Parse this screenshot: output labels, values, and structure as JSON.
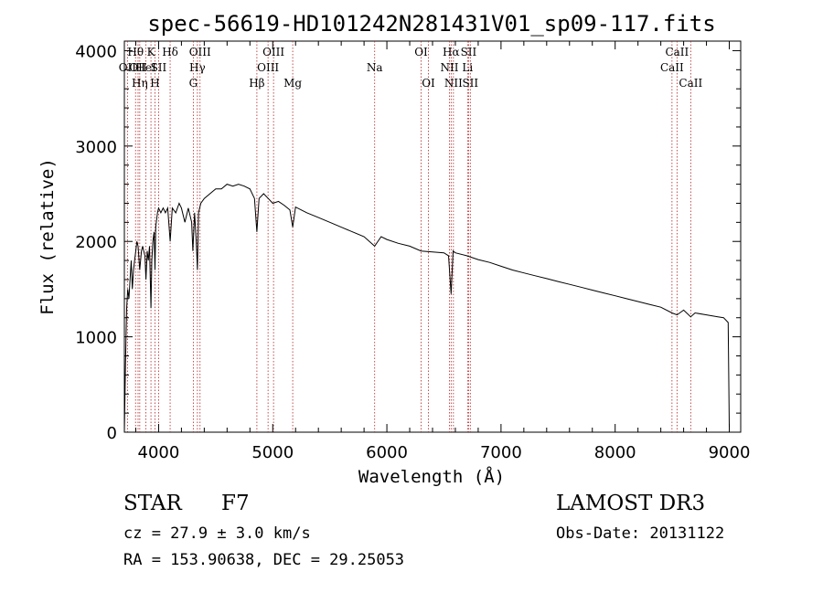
{
  "chart_data": {
    "type": "line",
    "title": "spec-56619-HD101242N281431V01_sp09-117.fits",
    "xlabel": "Wavelength (Å)",
    "ylabel": "Flux (relative)",
    "xlim": [
      3700,
      9100
    ],
    "ylim": [
      0,
      4100
    ],
    "xticks": [
      4000,
      5000,
      6000,
      7000,
      8000,
      9000
    ],
    "yticks": [
      0,
      1000,
      2000,
      3000,
      4000
    ],
    "series": [
      {
        "name": "spectrum",
        "x": [
          3700,
          3710,
          3720,
          3730,
          3740,
          3750,
          3760,
          3770,
          3780,
          3790,
          3800,
          3810,
          3820,
          3835,
          3850,
          3860,
          3870,
          3880,
          3889,
          3900,
          3910,
          3920,
          3933,
          3940,
          3950,
          3960,
          3968,
          3975,
          3990,
          4000,
          4020,
          4040,
          4060,
          4080,
          4101,
          4120,
          4150,
          4180,
          4200,
          4230,
          4260,
          4290,
          4300,
          4315,
          4330,
          4340,
          4350,
          4370,
          4400,
          4450,
          4500,
          4550,
          4600,
          4650,
          4700,
          4750,
          4800,
          4840,
          4861,
          4880,
          4920,
          4960,
          5000,
          5050,
          5100,
          5150,
          5175,
          5200,
          5250,
          5300,
          5400,
          5500,
          5600,
          5700,
          5800,
          5893,
          5950,
          6000,
          6100,
          6200,
          6300,
          6400,
          6500,
          6540,
          6563,
          6580,
          6600,
          6700,
          6800,
          6900,
          7000,
          7100,
          7200,
          7300,
          7400,
          7500,
          7600,
          7700,
          7800,
          7900,
          8000,
          8100,
          8200,
          8300,
          8400,
          8498,
          8542,
          8600,
          8662,
          8700,
          8800,
          8900,
          8950,
          8990,
          9000
        ],
        "y": [
          0,
          700,
          1300,
          1500,
          1400,
          1600,
          1800,
          1500,
          1700,
          1800,
          1900,
          2000,
          1950,
          1700,
          1900,
          1950,
          1900,
          1850,
          1600,
          1900,
          1800,
          1950,
          1300,
          1800,
          2000,
          2100,
          1700,
          2150,
          2300,
          2350,
          2300,
          2350,
          2300,
          2350,
          2000,
          2350,
          2300,
          2400,
          2350,
          2200,
          2350,
          2200,
          1900,
          2300,
          2000,
          1700,
          2300,
          2400,
          2450,
          2500,
          2550,
          2550,
          2600,
          2580,
          2600,
          2580,
          2550,
          2450,
          2100,
          2450,
          2500,
          2450,
          2400,
          2420,
          2380,
          2330,
          2150,
          2360,
          2330,
          2300,
          2250,
          2200,
          2150,
          2100,
          2050,
          1950,
          2050,
          2020,
          1980,
          1950,
          1900,
          1890,
          1880,
          1850,
          1450,
          1900,
          1880,
          1850,
          1810,
          1780,
          1740,
          1700,
          1670,
          1640,
          1610,
          1580,
          1550,
          1520,
          1490,
          1460,
          1430,
          1400,
          1370,
          1340,
          1310,
          1250,
          1230,
          1280,
          1210,
          1250,
          1230,
          1210,
          1200,
          1150,
          50
        ]
      }
    ],
    "lines": [
      {
        "w": 3727,
        "label": "OII",
        "row": 2
      },
      {
        "w": 3798,
        "label": "Hθ",
        "row": 1
      },
      {
        "w": 3820,
        "label": "OII",
        "row": 2
      },
      {
        "w": 3835,
        "label": "Hη",
        "row": 3
      },
      {
        "w": 3889,
        "label": "HeI",
        "row": 2
      },
      {
        "w": 3933,
        "label": "K",
        "row": 1
      },
      {
        "w": 3968,
        "label": "H",
        "row": 3
      },
      {
        "w": 4000,
        "label": "SII",
        "row": 2
      },
      {
        "w": 4101,
        "label": "Hδ",
        "row": 1
      },
      {
        "w": 4304,
        "label": "G",
        "row": 3
      },
      {
        "w": 4340,
        "label": "Hγ",
        "row": 2
      },
      {
        "w": 4363,
        "label": "OIII",
        "row": 1
      },
      {
        "w": 4861,
        "label": "Hβ",
        "row": 3
      },
      {
        "w": 4959,
        "label": "OIII",
        "row": 2
      },
      {
        "w": 5007,
        "label": "OIII",
        "row": 1
      },
      {
        "w": 5175,
        "label": "Mg",
        "row": 3
      },
      {
        "w": 5893,
        "label": "Na",
        "row": 2
      },
      {
        "w": 6300,
        "label": "OI",
        "row": 1
      },
      {
        "w": 6364,
        "label": "OI",
        "row": 3
      },
      {
        "w": 6548,
        "label": "NII",
        "row": 2
      },
      {
        "w": 6563,
        "label": "Hα",
        "row": 1
      },
      {
        "w": 6583,
        "label": "NII",
        "row": 3
      },
      {
        "w": 6707,
        "label": "Li",
        "row": 2
      },
      {
        "w": 6716,
        "label": "SII",
        "row": 1
      },
      {
        "w": 6731,
        "label": "SII",
        "row": 3
      },
      {
        "w": 8498,
        "label": "CaII",
        "row": 2
      },
      {
        "w": 8542,
        "label": "CaII",
        "row": 1
      },
      {
        "w": 8662,
        "label": "CaII",
        "row": 3
      }
    ]
  },
  "info": {
    "class_label": "STAR",
    "subclass": "F7",
    "survey": "LAMOST DR3",
    "cz": "cz = 27.9 ± 3.0 km/s",
    "obs_date": "Obs-Date: 20131122",
    "radec": "RA = 153.90638, DEC =  29.25053"
  }
}
